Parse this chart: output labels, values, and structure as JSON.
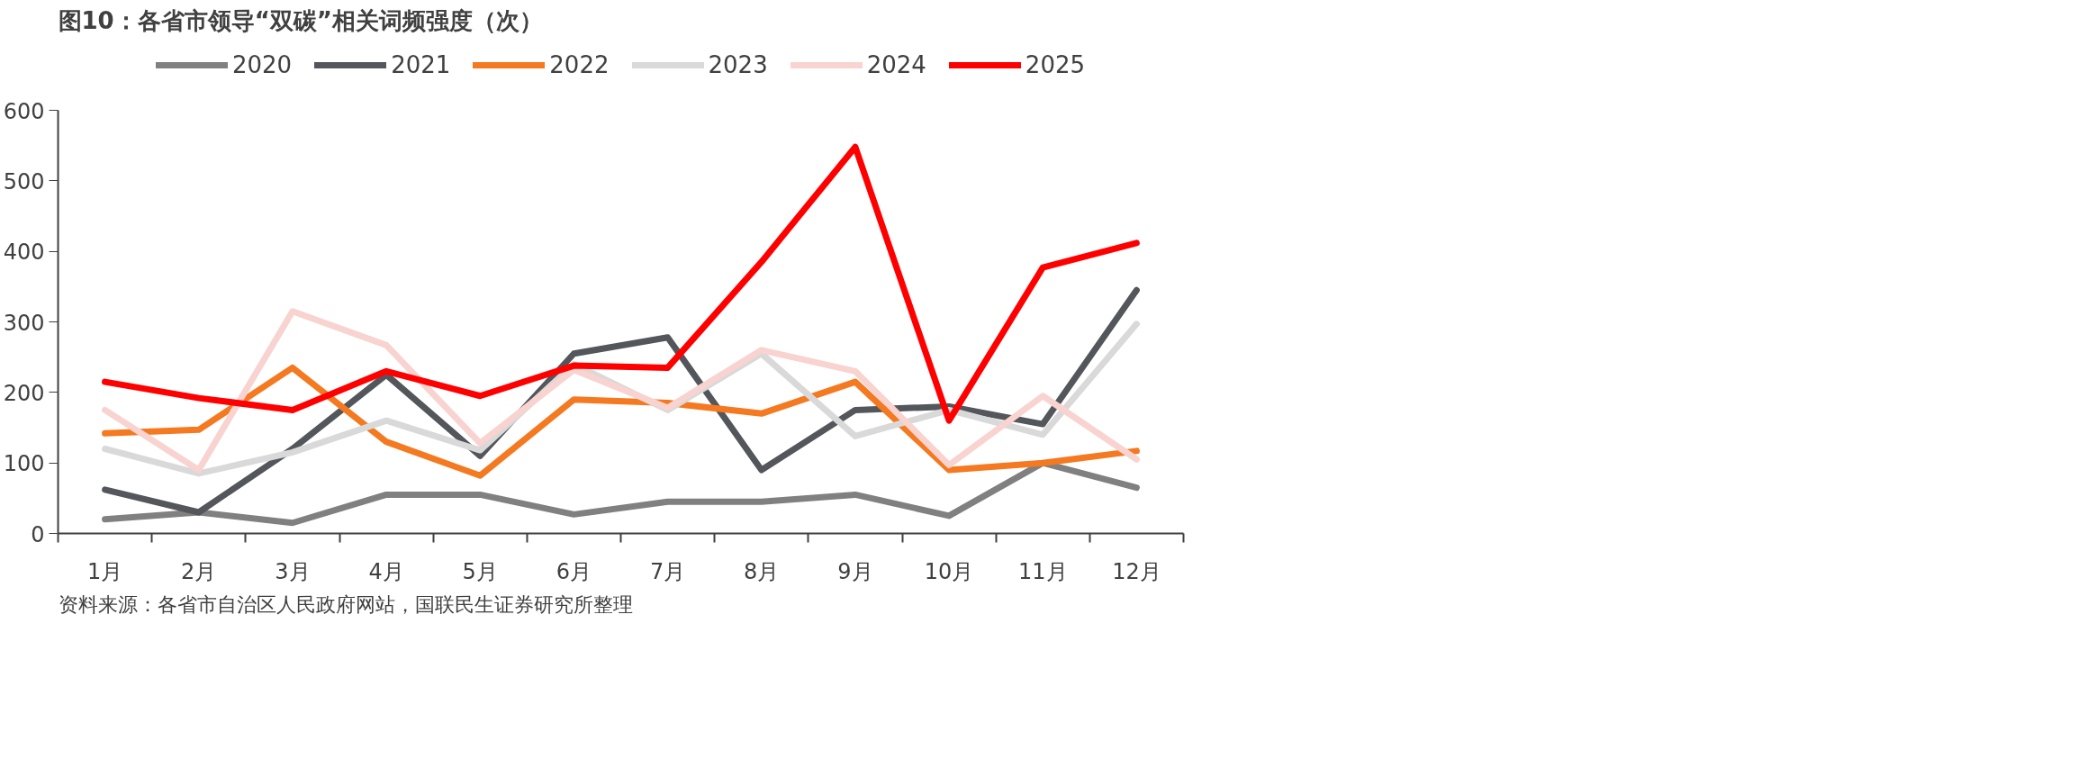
{
  "chart_data": {
    "type": "line",
    "title": "图10：各省市领导“双碳”相关词频强度（次）",
    "categories": [
      "1月",
      "2月",
      "3月",
      "4月",
      "5月",
      "6月",
      "7月",
      "8月",
      "9月",
      "10月",
      "11月",
      "12月"
    ],
    "series": [
      {
        "name": "2020",
        "color": "#808080",
        "values": [
          20,
          30,
          15,
          55,
          55,
          27,
          45,
          45,
          55,
          25,
          100,
          65
        ]
      },
      {
        "name": "2021",
        "color": "#53565a",
        "values": [
          62,
          30,
          120,
          225,
          110,
          255,
          278,
          90,
          175,
          180,
          155,
          345
        ]
      },
      {
        "name": "2022",
        "color": "#f47920",
        "values": [
          142,
          147,
          235,
          130,
          82,
          190,
          185,
          170,
          215,
          90,
          100,
          117
        ]
      },
      {
        "name": "2023",
        "color": "#d9d9d9",
        "values": [
          120,
          85,
          115,
          160,
          118,
          240,
          175,
          255,
          138,
          175,
          140,
          297
        ]
      },
      {
        "name": "2024",
        "color": "#f8d3d0",
        "values": [
          175,
          90,
          315,
          267,
          128,
          232,
          178,
          260,
          230,
          97,
          195,
          105
        ]
      },
      {
        "name": "2025",
        "color": "#ff0000",
        "values": [
          215,
          192,
          175,
          230,
          195,
          238,
          235,
          385,
          548,
          160,
          377,
          412
        ]
      }
    ],
    "ylim": [
      0,
      600
    ],
    "yticks": [
      0,
      100,
      200,
      300,
      400,
      500,
      600
    ],
    "grid": false,
    "legend": "top",
    "marker": "none",
    "line_style": "solid",
    "annotations": [
      "资料来源：各省市自治区人民政府网站，国联民生证券研究所整理"
    ]
  }
}
